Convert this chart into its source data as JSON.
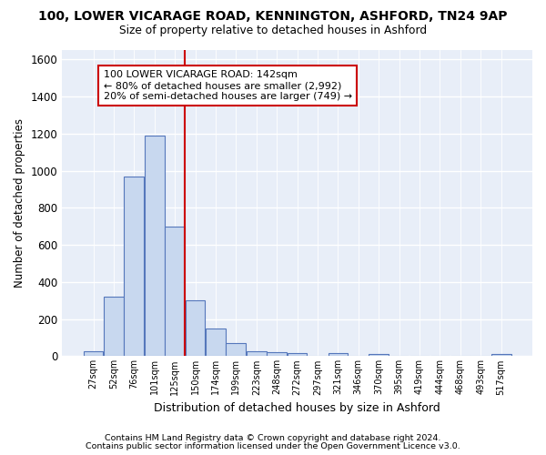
{
  "title1": "100, LOWER VICARAGE ROAD, KENNINGTON, ASHFORD, TN24 9AP",
  "title2": "Size of property relative to detached houses in Ashford",
  "xlabel": "Distribution of detached houses by size in Ashford",
  "ylabel": "Number of detached properties",
  "footnote1": "Contains HM Land Registry data © Crown copyright and database right 2024.",
  "footnote2": "Contains public sector information licensed under the Open Government Licence v3.0.",
  "bar_labels": [
    "27sqm",
    "52sqm",
    "76sqm",
    "101sqm",
    "125sqm",
    "150sqm",
    "174sqm",
    "199sqm",
    "223sqm",
    "248sqm",
    "272sqm",
    "297sqm",
    "321sqm",
    "346sqm",
    "370sqm",
    "395sqm",
    "419sqm",
    "444sqm",
    "468sqm",
    "493sqm",
    "517sqm"
  ],
  "bar_values": [
    25,
    320,
    970,
    1190,
    700,
    300,
    150,
    70,
    25,
    20,
    15,
    0,
    15,
    0,
    10,
    0,
    0,
    0,
    0,
    0,
    12
  ],
  "bar_color": "#c8d8ef",
  "bar_edgecolor": "#5577bb",
  "highlight_label": "100 LOWER VICARAGE ROAD: 142sqm",
  "annotation_line1": "← 80% of detached houses are smaller (2,992)",
  "annotation_line2": "20% of semi-detached houses are larger (749) →",
  "vline_color": "#cc0000",
  "annotation_box_edgecolor": "#cc0000",
  "ylim": [
    0,
    1650
  ],
  "yticks": [
    0,
    200,
    400,
    600,
    800,
    1000,
    1200,
    1400,
    1600
  ],
  "background_color": "#ffffff",
  "plot_bg_color": "#e8eef8",
  "grid_color": "#ffffff"
}
